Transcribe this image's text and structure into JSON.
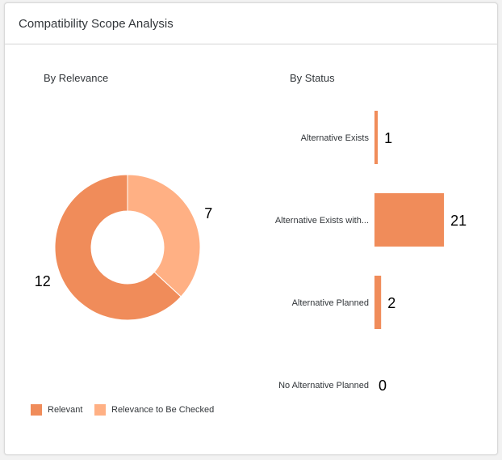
{
  "card": {
    "title": "Compatibility Scope Analysis"
  },
  "chart_data": [
    {
      "type": "pie",
      "subtitle": "By Relevance",
      "donut": true,
      "labels": [
        "Relevant",
        "Relevance to Be Checked"
      ],
      "values": [
        12,
        7
      ],
      "colors": [
        "#f08c5a",
        "#ffb084"
      ],
      "legend": "bottom-left"
    },
    {
      "type": "bar",
      "orientation": "horizontal",
      "subtitle": "By Status",
      "categories": [
        "Alternative Exists",
        "Alternative Exists with...",
        "Alternative Planned",
        "No Alternative Planned"
      ],
      "values": [
        1,
        21,
        2,
        0
      ],
      "color": "#f08c5a"
    }
  ]
}
